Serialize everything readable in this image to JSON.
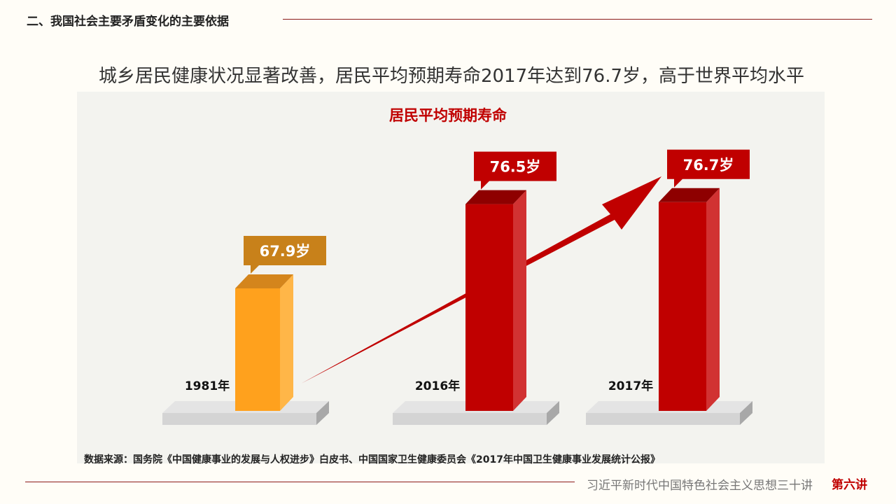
{
  "header": {
    "section_title": "二、我国社会主要矛盾变化的主要依据"
  },
  "subtitle": "城乡居民健康状况显著改善，居民平均预期寿命2017年达到76.7岁，高于世界平均水平",
  "chart_data": {
    "type": "bar",
    "title": "居民平均预期寿命",
    "categories": [
      "1981年",
      "2016年",
      "2017年"
    ],
    "values": [
      67.9,
      76.5,
      76.7
    ],
    "data_labels": [
      "67.9岁",
      "76.5岁",
      "76.7岁"
    ],
    "unit": "岁",
    "colors": {
      "bar_1981": "#ffa11d",
      "label_1981": "#c8811a",
      "bars_recent": "#c00000",
      "title": "#c00000"
    },
    "annotation": "rising-arrow"
  },
  "source": "数据来源：国务院《中国健康事业的发展与人权进步》白皮书、中国国家卫生健康委员会《2017年中国卫生健康事业发展统计公报》",
  "footer": {
    "series_title": "习近平新时代中国特色社会主义思想三十讲",
    "lecture": "第六讲"
  }
}
